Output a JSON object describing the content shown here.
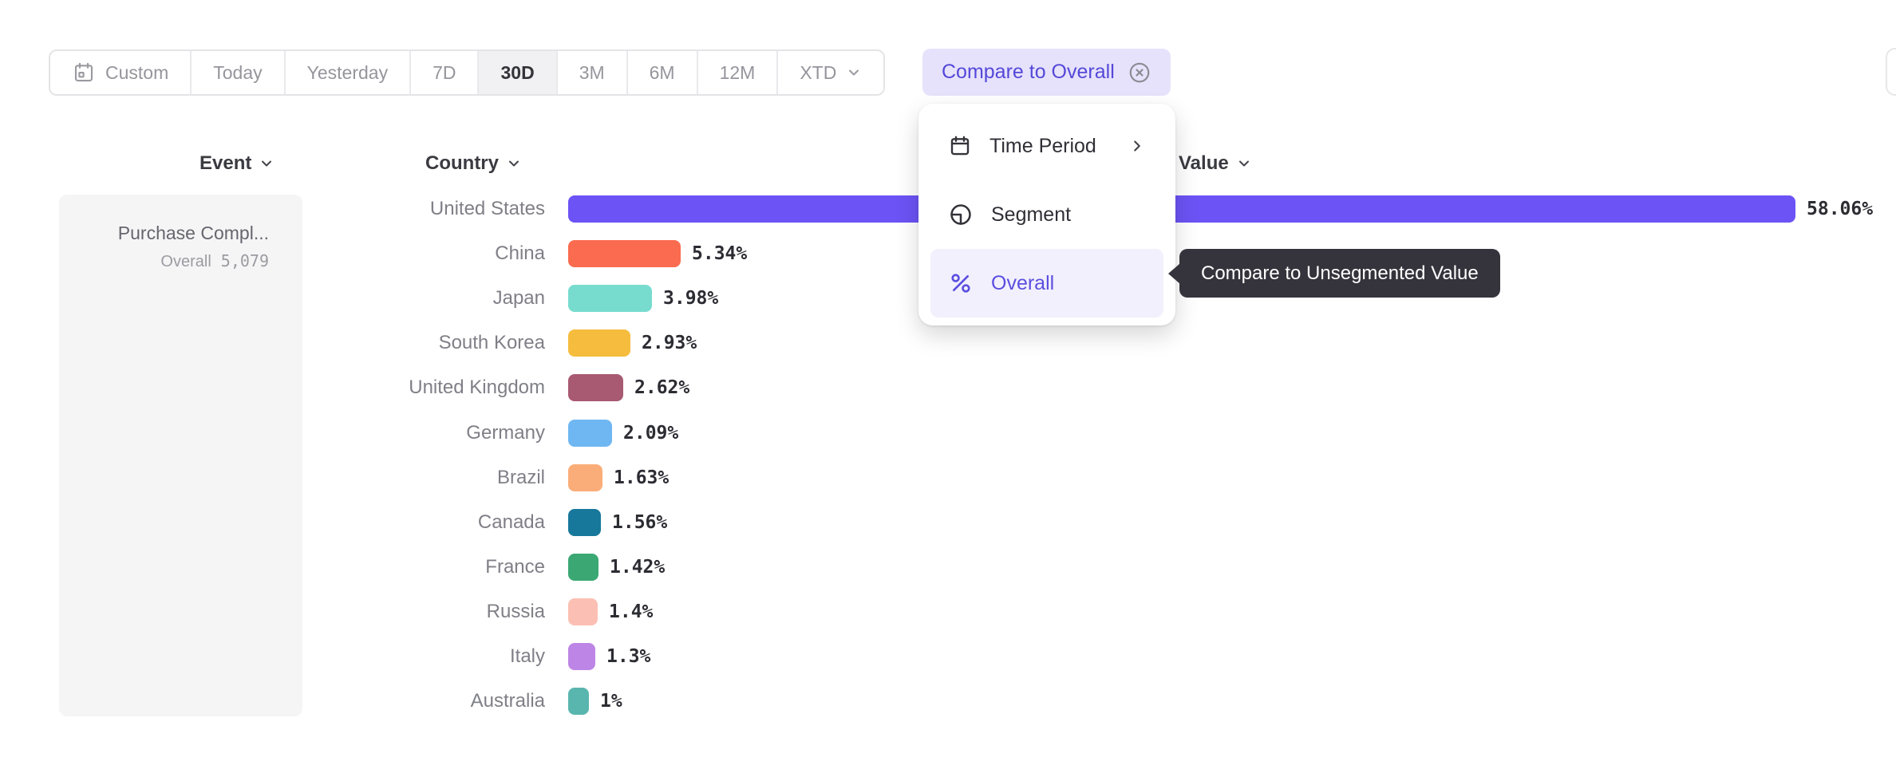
{
  "accent_color": "#6C53F5",
  "toolbar": {
    "ranges": [
      {
        "label": "Custom",
        "icon": "calendar",
        "selected": false
      },
      {
        "label": "Today",
        "selected": false
      },
      {
        "label": "Yesterday",
        "selected": false
      },
      {
        "label": "7D",
        "selected": false
      },
      {
        "label": "30D",
        "selected": true
      },
      {
        "label": "3M",
        "selected": false
      },
      {
        "label": "6M",
        "selected": false
      },
      {
        "label": "12M",
        "selected": false
      },
      {
        "label": "XTD",
        "selected": false,
        "has_dropdown": true
      }
    ],
    "compare_chip": {
      "label": "Compare to Overall",
      "icon": "x-circle"
    }
  },
  "dropdown_menu": {
    "items": [
      {
        "label": "Time Period",
        "icon": "calendar",
        "has_submenu": true,
        "selected": false
      },
      {
        "label": "Segment",
        "icon": "segment",
        "has_submenu": false,
        "selected": false
      },
      {
        "label": "Overall",
        "icon": "percent",
        "has_submenu": false,
        "selected": true
      }
    ]
  },
  "tooltip": {
    "text": "Compare to Unsegmented Value",
    "background": "#35343C"
  },
  "table": {
    "columns": [
      {
        "label": "Event"
      },
      {
        "label": "Country"
      },
      {
        "label": "Value"
      }
    ]
  },
  "event_panel": {
    "event_name": "Purchase Compl...",
    "overall_label": "Overall",
    "overall_value": "5,079"
  },
  "chart_data": {
    "type": "bar",
    "orientation": "horizontal",
    "title": "Value by Country",
    "categories": [
      "United States",
      "China",
      "Japan",
      "South Korea",
      "United Kingdom",
      "Germany",
      "Brazil",
      "Canada",
      "France",
      "Russia",
      "Italy",
      "Australia"
    ],
    "values": [
      58.06,
      5.34,
      3.98,
      2.93,
      2.62,
      2.09,
      1.63,
      1.56,
      1.42,
      1.4,
      1.3,
      1.0
    ],
    "value_labels": [
      "58.06%",
      "5.34%",
      "3.98%",
      "2.93%",
      "2.62%",
      "2.09%",
      "1.63%",
      "1.56%",
      "1.42%",
      "1.4%",
      "1.3%",
      "1%"
    ],
    "colors": [
      "#6C53F5",
      "#FA6B4F",
      "#77DCCE",
      "#F5BC3D",
      "#A85A72",
      "#6FB7F2",
      "#FBAD79",
      "#17789B",
      "#3BA874",
      "#FBC0B3",
      "#BD85E6",
      "#59B6AE"
    ],
    "unit": "%",
    "xlim": [
      0,
      60
    ],
    "grid": false,
    "legend": false
  }
}
